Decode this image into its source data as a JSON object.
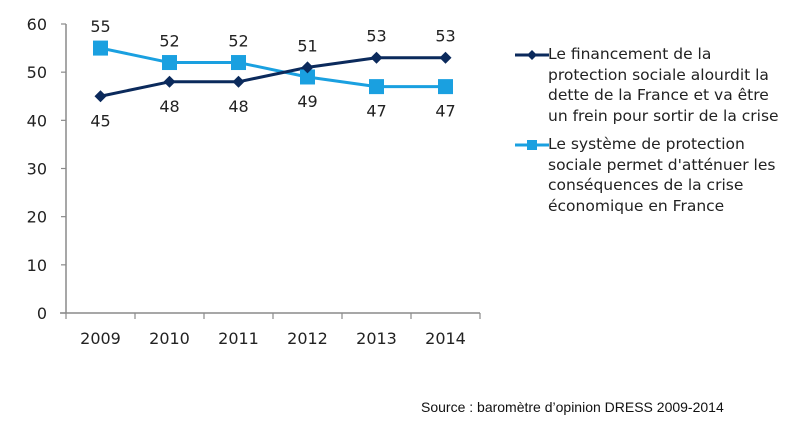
{
  "chart_data": {
    "type": "line",
    "title": "",
    "xlabel": "",
    "ylabel": "",
    "categories": [
      "2009",
      "2010",
      "2011",
      "2012",
      "2013",
      "2014"
    ],
    "ylim": [
      0,
      60
    ],
    "yticks": [
      0,
      10,
      20,
      30,
      40,
      50,
      60
    ],
    "yticks_labels": [
      "0",
      "10",
      "20",
      "30",
      "40",
      "50",
      "60"
    ],
    "grid": false,
    "legend_position": "right",
    "series": [
      {
        "name": "Le financement de la protection sociale alourdit la dette de la France et va être un frein pour sortir de la crise",
        "marker": "diamond",
        "color": "#0b2a5c",
        "label_position": "below-first-then-above",
        "values": [
          45,
          48,
          48,
          51,
          53,
          53
        ],
        "labels": [
          "45",
          "48",
          "48",
          "51",
          "53",
          "53"
        ]
      },
      {
        "name": "Le système de protection sociale permet d'atténuer les conséquences de la crise économique en France",
        "marker": "square",
        "color": "#1aa0e0",
        "values": [
          55,
          52,
          52,
          49,
          47,
          47
        ],
        "labels": [
          "55",
          "52",
          "52",
          "49",
          "47",
          "47"
        ]
      }
    ]
  },
  "legend": {
    "items": [
      {
        "label": "Le financement de la protection sociale alourdit la dette de la France et va être un frein pour sortir de la crise",
        "color": "#0b2a5c",
        "marker": "diamond"
      },
      {
        "label": "Le système de protection sociale permet d'atténuer les conséquences de la crise économique en France",
        "color": "#1aa0e0",
        "marker": "square"
      }
    ]
  },
  "source": "Source : baromètre d’opinion DRESS 2009-2014"
}
